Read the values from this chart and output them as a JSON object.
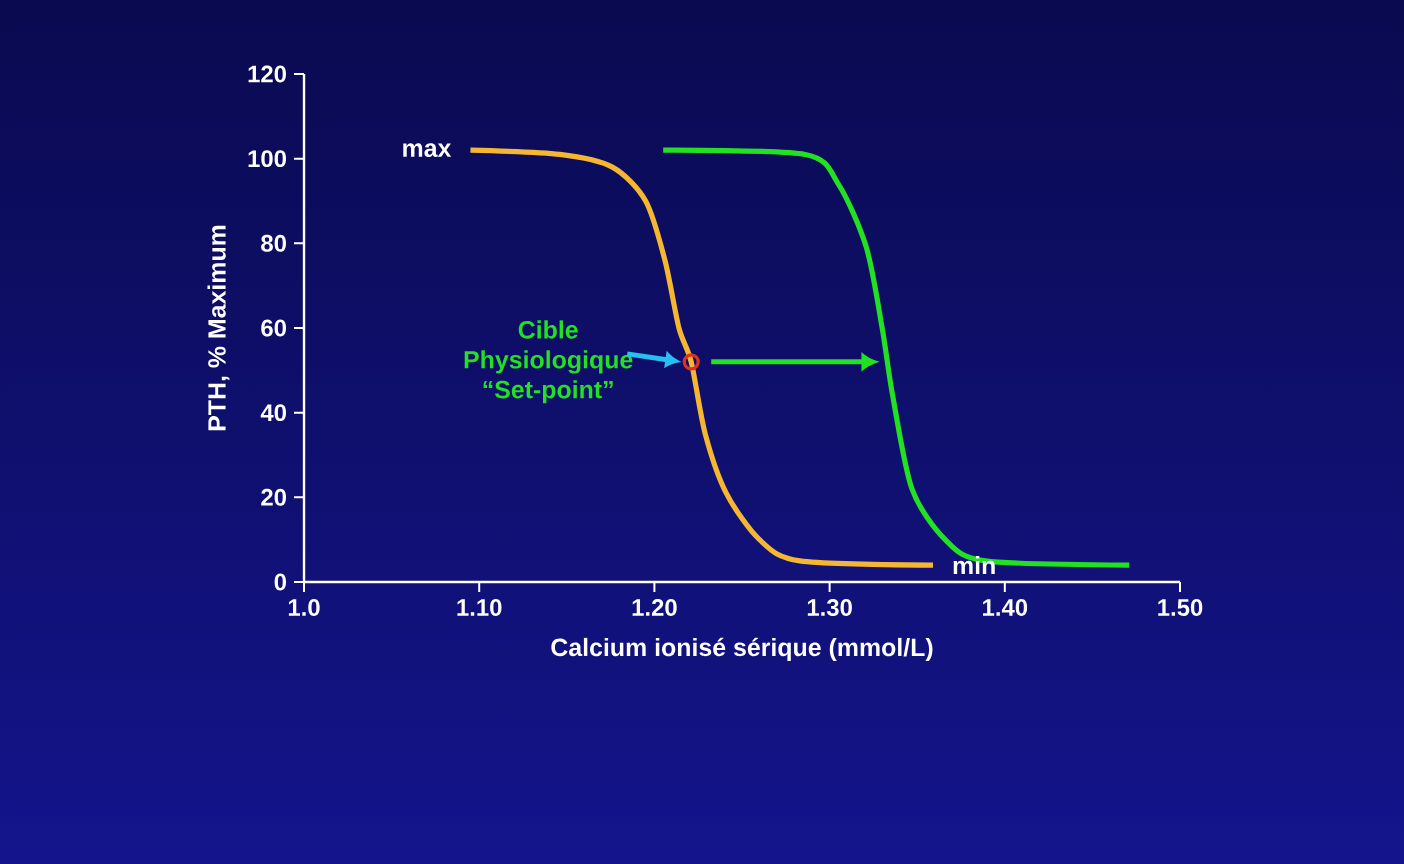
{
  "chart_data": {
    "type": "line",
    "xlabel": "Calcium ionisé sérique (mmol/L)",
    "ylabel": "PTH, % Maximum",
    "xlim": [
      1.0,
      1.5
    ],
    "ylim": [
      0,
      120
    ],
    "xticks": [
      {
        "value": 1.0,
        "label": "1.0"
      },
      {
        "value": 1.1,
        "label": "1.10"
      },
      {
        "value": 1.2,
        "label": "1.20"
      },
      {
        "value": 1.3,
        "label": "1.30"
      },
      {
        "value": 1.4,
        "label": "1.40"
      },
      {
        "value": 1.5,
        "label": "1.50"
      }
    ],
    "yticks": [
      0,
      20,
      40,
      60,
      80,
      100,
      120
    ],
    "series": [
      {
        "color": "#f5b731",
        "x": [
          1.095,
          1.146,
          1.176,
          1.195,
          1.206,
          1.214,
          1.221,
          1.229,
          1.241,
          1.26,
          1.283,
          1.359
        ],
        "values": [
          102,
          101,
          98,
          90,
          76,
          60,
          52,
          35,
          21,
          10,
          5,
          4
        ]
      },
      {
        "color": "#22e022",
        "x": [
          1.205,
          1.286,
          1.305,
          1.321,
          1.33,
          1.336,
          1.347,
          1.366,
          1.389,
          1.471
        ],
        "values": [
          102,
          101,
          94,
          79,
          60,
          44,
          22,
          10,
          5,
          4
        ]
      },
      {
        "type": "scatter",
        "color": "#e03020",
        "x": [
          1.221
        ],
        "values": [
          52
        ]
      }
    ],
    "annotations": [
      {
        "text": "max",
        "x": 1.095,
        "y": 102
      },
      {
        "text": "min",
        "x": 1.359,
        "y": 4
      },
      {
        "text": "Cible Physiologique “Set-point”",
        "x": 1.221,
        "y": 52
      }
    ]
  }
}
